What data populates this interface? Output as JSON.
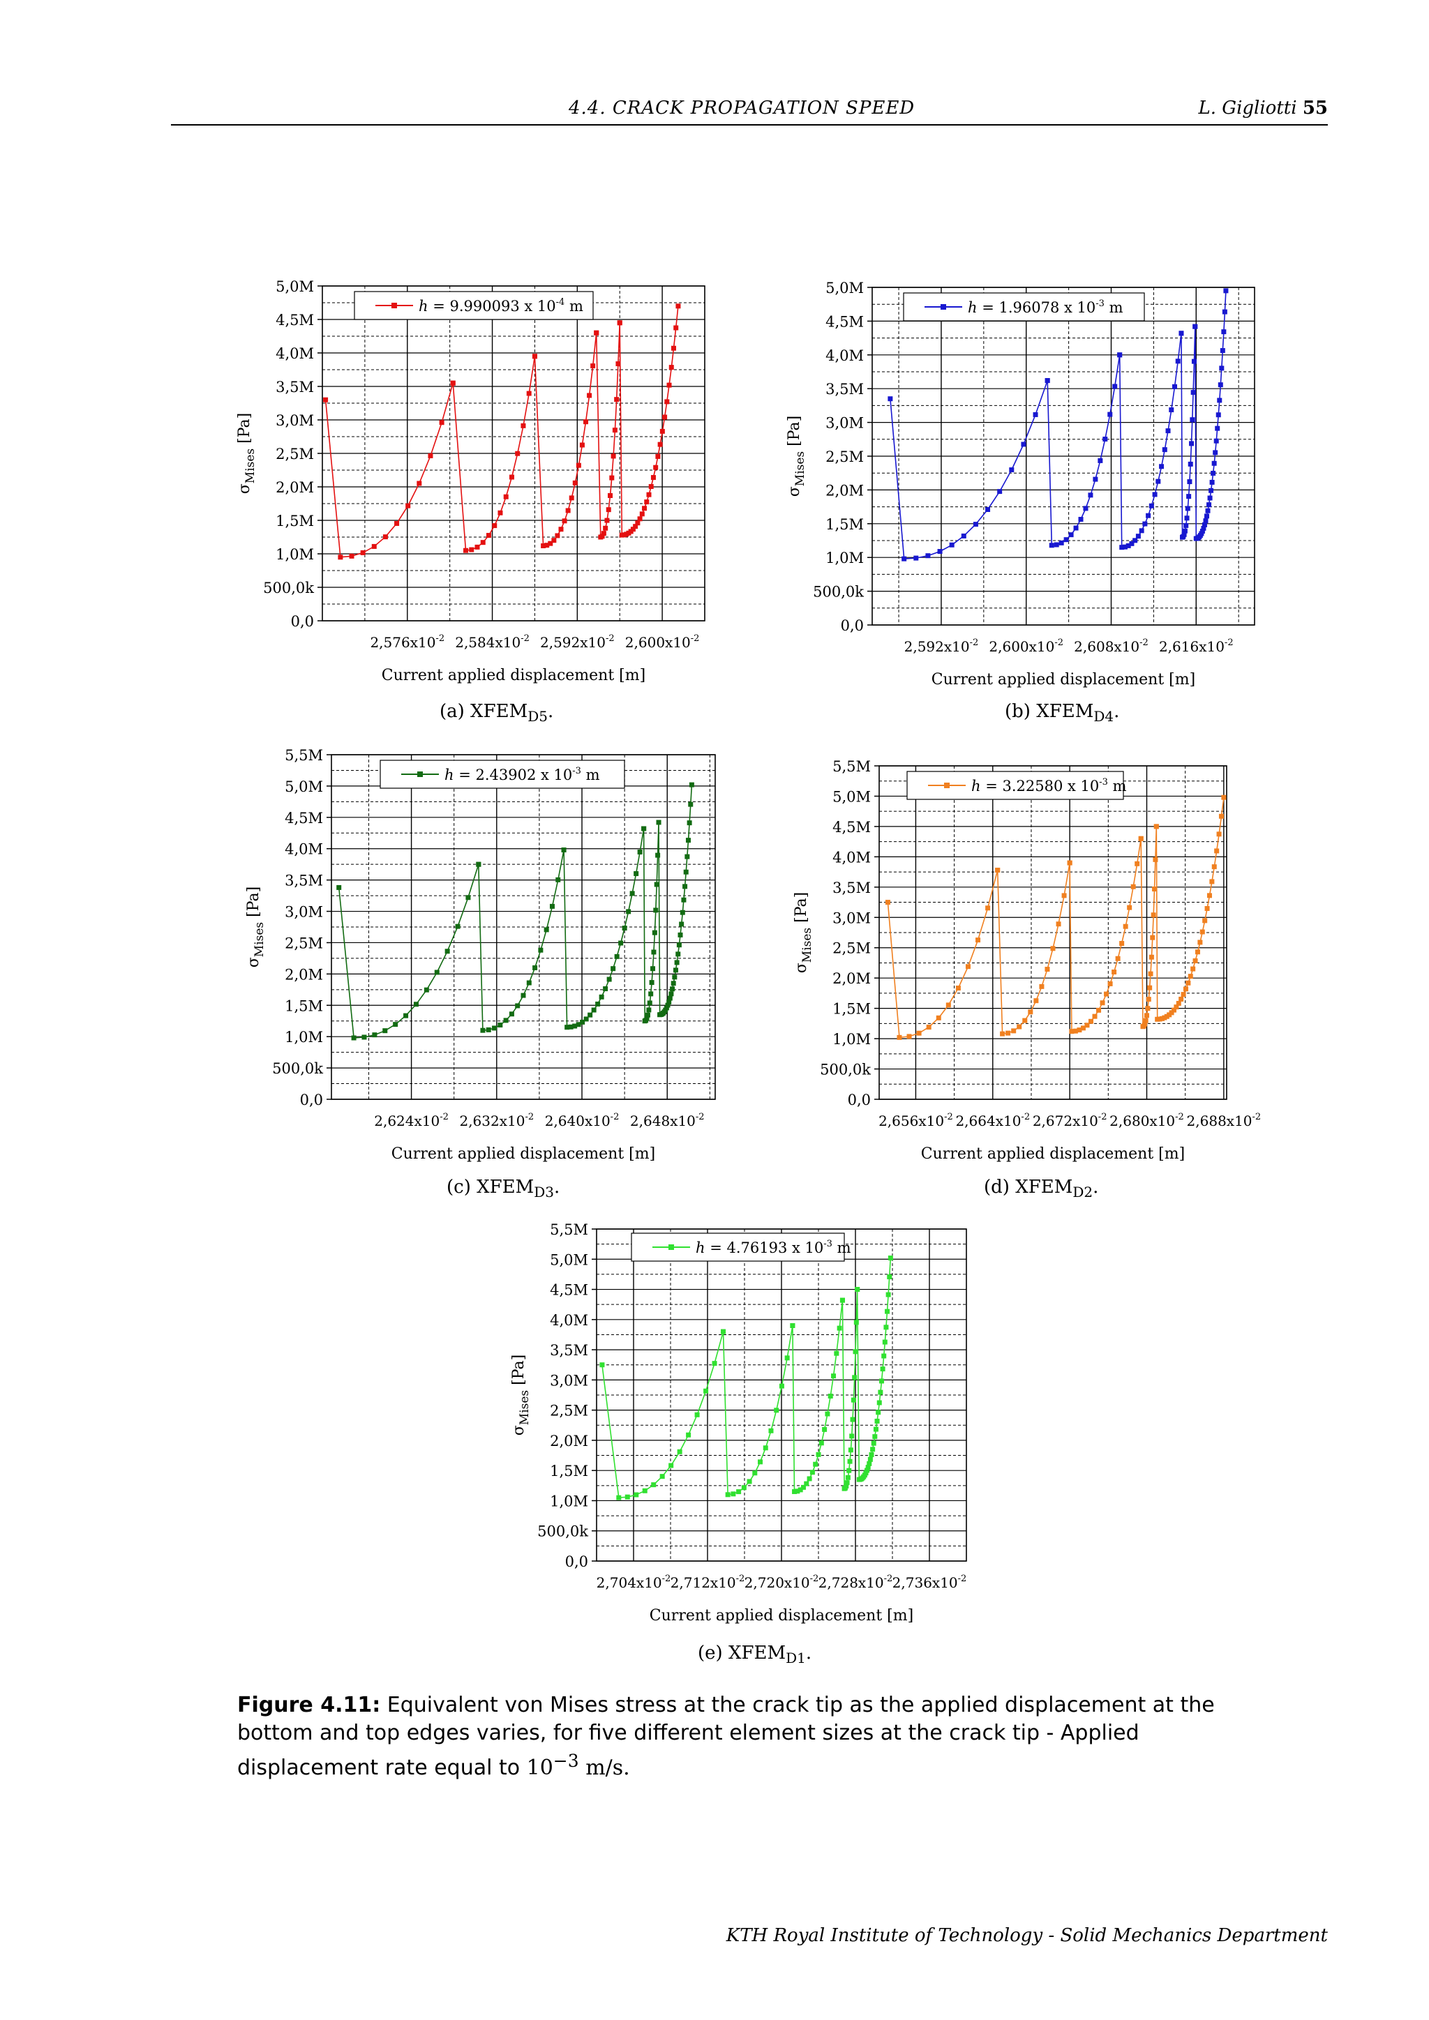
{
  "header": {
    "section": "4.4.  CRACK PROPAGATION SPEED",
    "author": "L. Gigliotti",
    "page": "55"
  },
  "caption": {
    "label": "Figure 4.11:",
    "text": "Equivalent von Mises stress at the crack tip as the applied displacement at the bottom and top edges varies, for five different element sizes at the crack tip - Applied displacement rate equal to ",
    "rate_base": "10",
    "rate_exp": "−3",
    "rate_unit": " m/s."
  },
  "footer": "KTH Royal Institute of Technology - Solid Mechanics Department",
  "axis_common": {
    "ylabel_main": "σ",
    "ylabel_sub": "Mises",
    "ylabel_unit": " [Pa]",
    "xlabel": "Current applied displacement [m]",
    "x_exp": "-2"
  },
  "chart_data": [
    {
      "type": "line",
      "label": "(a) XFEM",
      "label_sub": "D5",
      "color": "#e41010",
      "legend": {
        "h_var": "h",
        "text": " = 9.990093 x 10",
        "exp": "-4",
        "unit": " m"
      },
      "xlim": [
        2.568,
        2.604
      ],
      "ylim": [
        0,
        5.0
      ],
      "x_ticks": [
        2.576,
        2.584,
        2.592,
        2.6
      ],
      "x_tick_labels": [
        "2,576x10",
        "2,584x10",
        "2,592x10",
        "2,600x10"
      ],
      "y_ticks": [
        0,
        0.5,
        1.0,
        1.5,
        2.0,
        2.5,
        3.0,
        3.5,
        4.0,
        4.5,
        5.0
      ],
      "y_tick_labels": [
        "0,0",
        "500,0k",
        "1,0M",
        "1,5M",
        "2,0M",
        "2,5M",
        "3,0M",
        "3,5M",
        "4,0M",
        "4,5M",
        "5,0M"
      ],
      "cycles": [
        {
          "x0": 2.5683,
          "y0": 3.3,
          "xm": 2.5697,
          "ym": 0.95,
          "xp": 2.5803,
          "yp": 3.55,
          "n": 10
        },
        {
          "x0": 2.5803,
          "y0": 3.55,
          "xm": 2.5815,
          "ym": 1.05,
          "xp": 2.588,
          "yp": 3.95,
          "n": 12
        },
        {
          "x0": 2.588,
          "y0": 3.95,
          "xm": 2.5888,
          "ym": 1.12,
          "xp": 2.5938,
          "yp": 4.3,
          "n": 15
        },
        {
          "x0": 2.5938,
          "y0": 4.3,
          "xm": 2.5942,
          "ym": 1.25,
          "xp": 2.596,
          "yp": 4.45,
          "n": 12
        },
        {
          "x0": 2.596,
          "y0": 4.45,
          "xm": 2.5962,
          "ym": 1.28,
          "xp": 2.6015,
          "yp": 4.7,
          "n": 25
        }
      ]
    },
    {
      "type": "line",
      "label": "(b) XFEM",
      "label_sub": "D4",
      "color": "#1818d0",
      "legend": {
        "h_var": "h",
        "text": " = 1.96078 x 10",
        "exp": "-3",
        "unit": " m"
      },
      "xlim": [
        2.5855,
        2.6215
      ],
      "ylim": [
        0,
        5.0
      ],
      "x_ticks": [
        2.592,
        2.6,
        2.608,
        2.616
      ],
      "x_tick_labels": [
        "2,592x10",
        "2,600x10",
        "2,608x10",
        "2,616x10"
      ],
      "y_ticks": [
        0,
        0.5,
        1.0,
        1.5,
        2.0,
        2.5,
        3.0,
        3.5,
        4.0,
        4.5,
        5.0
      ],
      "y_tick_labels": [
        "0,0",
        "500,0k",
        "1,0M",
        "1,5M",
        "2,0M",
        "2,5M",
        "3,0M",
        "3,5M",
        "4,0M",
        "4,5M",
        "5,0M"
      ],
      "cycles": [
        {
          "x0": 2.5872,
          "y0": 3.35,
          "xm": 2.5885,
          "ym": 0.98,
          "xp": 2.602,
          "yp": 3.62,
          "n": 12
        },
        {
          "x0": 2.602,
          "y0": 3.62,
          "xm": 2.6024,
          "ym": 1.18,
          "xp": 2.6088,
          "yp": 4.0,
          "n": 14
        },
        {
          "x0": 2.6088,
          "y0": 4.0,
          "xm": 2.609,
          "ym": 1.15,
          "xp": 2.6146,
          "yp": 4.32,
          "n": 18
        },
        {
          "x0": 2.6146,
          "y0": 4.32,
          "xm": 2.6147,
          "ym": 1.3,
          "xp": 2.6159,
          "yp": 4.42,
          "n": 14
        },
        {
          "x0": 2.6159,
          "y0": 4.42,
          "xm": 2.616,
          "ym": 1.28,
          "xp": 2.6188,
          "yp": 4.95,
          "n": 28
        }
      ]
    },
    {
      "type": "line",
      "label": "(c) XFEM",
      "label_sub": "D3",
      "color": "#126b12",
      "legend": {
        "h_var": "h",
        "text": " = 2.43902 x 10",
        "exp": "-3",
        "unit": " m"
      },
      "xlim": [
        2.6165,
        2.6525
      ],
      "ylim": [
        0,
        5.5
      ],
      "x_ticks": [
        2.624,
        2.632,
        2.64,
        2.648
      ],
      "x_tick_labels": [
        "2,624x10",
        "2,632x10",
        "2,640x10",
        "2,648x10"
      ],
      "y_ticks": [
        0,
        0.5,
        1.0,
        1.5,
        2.0,
        2.5,
        3.0,
        3.5,
        4.0,
        4.5,
        5.0,
        5.5
      ],
      "y_tick_labels": [
        "0,0",
        "500,0k",
        "1,0M",
        "1,5M",
        "2,0M",
        "2,5M",
        "3,0M",
        "3,5M",
        "4,0M",
        "4,5M",
        "5,0M",
        "5,5M"
      ],
      "cycles": [
        {
          "x0": 2.6172,
          "y0": 3.38,
          "xm": 2.6186,
          "ym": 0.98,
          "xp": 2.6303,
          "yp": 3.75,
          "n": 12
        },
        {
          "x0": 2.6303,
          "y0": 3.75,
          "xm": 2.6307,
          "ym": 1.1,
          "xp": 2.6383,
          "yp": 3.98,
          "n": 14
        },
        {
          "x0": 2.6383,
          "y0": 3.98,
          "xm": 2.6386,
          "ym": 1.15,
          "xp": 2.6458,
          "yp": 4.32,
          "n": 20
        },
        {
          "x0": 2.6458,
          "y0": 4.32,
          "xm": 2.6459,
          "ym": 1.25,
          "xp": 2.6472,
          "yp": 4.42,
          "n": 14
        },
        {
          "x0": 2.6472,
          "y0": 4.42,
          "xm": 2.6473,
          "ym": 1.35,
          "xp": 2.6503,
          "yp": 5.02,
          "n": 28
        }
      ]
    },
    {
      "type": "line",
      "label": "(d) XFEM",
      "label_sub": "D2",
      "color": "#f08020",
      "legend": {
        "h_var": "h",
        "text": " = 3.22580 x 10",
        "exp": "-3",
        "unit": " m"
      },
      "xlim": [
        2.6522,
        2.6883
      ],
      "ylim": [
        0,
        5.5
      ],
      "x_ticks": [
        2.656,
        2.664,
        2.672,
        2.68,
        2.688
      ],
      "x_tick_labels": [
        "2,656x10",
        "2,664x10",
        "2,672x10",
        "2,680x10",
        "2,688x10"
      ],
      "y_ticks": [
        0,
        0.5,
        1.0,
        1.5,
        2.0,
        2.5,
        3.0,
        3.5,
        4.0,
        4.5,
        5.0,
        5.5
      ],
      "y_tick_labels": [
        "0,0",
        "500,0k",
        "1,0M",
        "1,5M",
        "2,0M",
        "2,5M",
        "3,0M",
        "3,5M",
        "4,0M",
        "4,5M",
        "5,0M",
        "5,5M"
      ],
      "cycles": [
        {
          "x0": 2.6531,
          "y0": 3.25,
          "xm": 2.6543,
          "ym": 1.02,
          "xp": 2.6645,
          "yp": 3.78,
          "n": 10
        },
        {
          "x0": 2.6645,
          "y0": 3.78,
          "xm": 2.665,
          "ym": 1.08,
          "xp": 2.672,
          "yp": 3.9,
          "n": 12
        },
        {
          "x0": 2.672,
          "y0": 3.9,
          "xm": 2.6722,
          "ym": 1.12,
          "xp": 2.6794,
          "yp": 4.3,
          "n": 18
        },
        {
          "x0": 2.6794,
          "y0": 4.3,
          "xm": 2.6796,
          "ym": 1.2,
          "xp": 2.681,
          "yp": 4.5,
          "n": 14
        },
        {
          "x0": 2.681,
          "y0": 4.5,
          "xm": 2.6811,
          "ym": 1.32,
          "xp": 2.688,
          "yp": 4.98,
          "n": 28
        }
      ]
    },
    {
      "type": "line",
      "label": "(e) XFEM",
      "label_sub": "D1",
      "color": "#30e030",
      "legend": {
        "h_var": "h",
        "text": " = 4.76193 x 10",
        "exp": "-3",
        "unit": " m"
      },
      "xlim": [
        2.7,
        2.74
      ],
      "ylim": [
        0,
        5.5
      ],
      "x_ticks": [
        2.704,
        2.712,
        2.72,
        2.728,
        2.736
      ],
      "x_tick_labels": [
        "2,704x10",
        "2,712x10",
        "2,720x10",
        "2,728x10",
        "2,736x10"
      ],
      "y_ticks": [
        0,
        0.5,
        1.0,
        1.5,
        2.0,
        2.5,
        3.0,
        3.5,
        4.0,
        4.5,
        5.0,
        5.5
      ],
      "y_tick_labels": [
        "0,0",
        "500,0k",
        "1,0M",
        "1,5M",
        "2,0M",
        "2,5M",
        "3,0M",
        "3,5M",
        "4,0M",
        "4,5M",
        "5,0M",
        "5,5M"
      ],
      "cycles": [
        {
          "x0": 2.7006,
          "y0": 3.25,
          "xm": 2.7024,
          "ym": 1.05,
          "xp": 2.7137,
          "yp": 3.8,
          "n": 12
        },
        {
          "x0": 2.7137,
          "y0": 3.8,
          "xm": 2.7142,
          "ym": 1.1,
          "xp": 2.7212,
          "yp": 3.9,
          "n": 12
        },
        {
          "x0": 2.7212,
          "y0": 3.9,
          "xm": 2.7214,
          "ym": 1.15,
          "xp": 2.7266,
          "yp": 4.32,
          "n": 16
        },
        {
          "x0": 2.7266,
          "y0": 4.32,
          "xm": 2.7268,
          "ym": 1.2,
          "xp": 2.7282,
          "yp": 4.5,
          "n": 14
        },
        {
          "x0": 2.7282,
          "y0": 4.5,
          "xm": 2.7284,
          "ym": 1.35,
          "xp": 2.7318,
          "yp": 5.02,
          "n": 28
        }
      ]
    }
  ]
}
